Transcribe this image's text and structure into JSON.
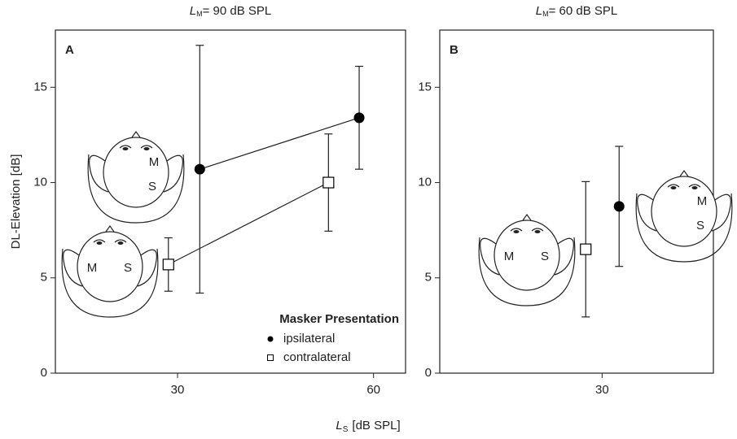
{
  "x_label": {
    "var": "L",
    "sub": "S",
    "text": "[dB SPL]"
  },
  "chart_data": [
    {
      "type": "scatter",
      "panel": "A",
      "title_var": "L",
      "title_sub": "M",
      "title": "= 90 dB SPL",
      "y_label": "DL-Elevation [dB]",
      "xlim": [
        11.3,
        64.9
      ],
      "xticks": [
        30,
        60
      ],
      "ylim": [
        0,
        18
      ],
      "yticks": [
        0,
        5,
        10,
        15
      ],
      "lines": true,
      "legend": "lower right",
      "legend_title": "Masker Presentation",
      "series": [
        {
          "name": "ipsilateral",
          "marker": "circle",
          "color": "#000000",
          "x": [
            33.4,
            57.8
          ],
          "values": [
            10.7,
            13.4
          ],
          "errors": [
            6.5,
            2.7
          ]
        },
        {
          "name": "contralateral",
          "marker": "square",
          "color": "#000000",
          "x": [
            28.6,
            53.1
          ],
          "values": [
            5.7,
            10.0
          ],
          "errors": [
            1.4,
            2.55
          ]
        }
      ],
      "head_labels": [
        [
          "M",
          "S"
        ],
        [
          "M",
          "S"
        ]
      ]
    },
    {
      "type": "scatter",
      "panel": "B",
      "title_var": "L",
      "title_sub": "M",
      "title": "= 60 dB SPL",
      "xlim": [
        5.2,
        47
      ],
      "xticks": [
        30
      ],
      "ylim": [
        0,
        18
      ],
      "yticks": [
        0,
        5,
        10,
        15
      ],
      "lines": false,
      "series": [
        {
          "name": "ipsilateral",
          "marker": "circle",
          "color": "#000000",
          "x": [
            32.6
          ],
          "values": [
            8.75
          ],
          "errors": [
            3.15
          ]
        },
        {
          "name": "contralateral",
          "marker": "square",
          "color": "#000000",
          "x": [
            27.5
          ],
          "values": [
            6.5
          ],
          "errors": [
            3.55
          ]
        }
      ],
      "head_labels": [
        [
          "M",
          "S"
        ],
        [
          "M",
          "S"
        ]
      ]
    }
  ]
}
